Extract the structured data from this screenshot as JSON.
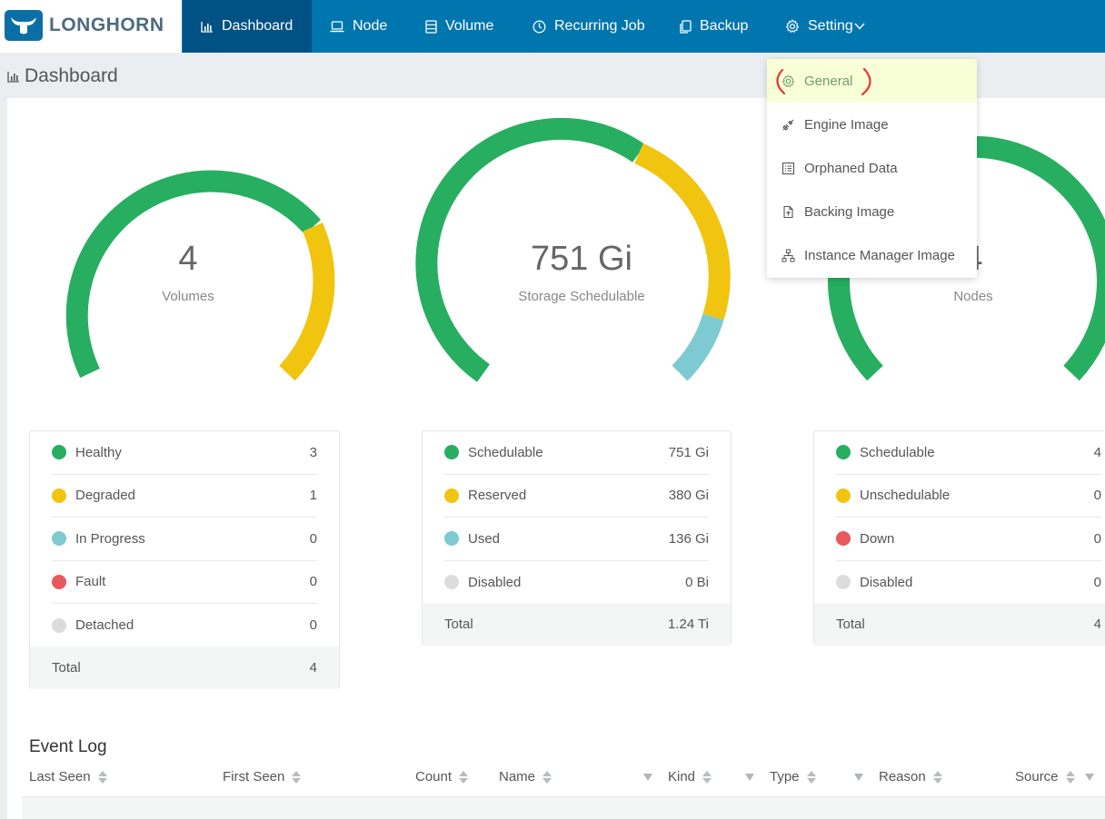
{
  "app": {
    "brand": "LONGHORN"
  },
  "nav": {
    "items": [
      {
        "label": "Dashboard",
        "icon": "bar-chart-icon"
      },
      {
        "label": "Node",
        "icon": "laptop-icon"
      },
      {
        "label": "Volume",
        "icon": "database-icon"
      },
      {
        "label": "Recurring Job",
        "icon": "clock-icon"
      },
      {
        "label": "Backup",
        "icon": "copy-icon"
      },
      {
        "label": "Setting",
        "icon": "gear-icon"
      }
    ]
  },
  "page": {
    "title": "Dashboard"
  },
  "gauges": [
    {
      "value": "4",
      "label": "Volumes"
    },
    {
      "value": "751 Gi",
      "label": "Storage Schedulable"
    },
    {
      "value": "4",
      "label": "Nodes"
    }
  ],
  "volume_stats": {
    "rows": [
      {
        "label": "Healthy",
        "value": "3"
      },
      {
        "label": "Degraded",
        "value": "1"
      },
      {
        "label": "In Progress",
        "value": "0"
      },
      {
        "label": "Fault",
        "value": "0"
      },
      {
        "label": "Detached",
        "value": "0"
      }
    ],
    "total_label": "Total",
    "total_value": "4"
  },
  "storage_stats": {
    "rows": [
      {
        "label": "Schedulable",
        "value": "751 Gi"
      },
      {
        "label": "Reserved",
        "value": "380 Gi"
      },
      {
        "label": "Used",
        "value": "136 Gi"
      },
      {
        "label": "Disabled",
        "value": "0 Bi"
      }
    ],
    "total_label": "Total",
    "total_value": "1.24 Ti"
  },
  "node_stats": {
    "rows": [
      {
        "label": "Schedulable",
        "value": "4"
      },
      {
        "label": "Unschedulable",
        "value": "0"
      },
      {
        "label": "Down",
        "value": "0"
      },
      {
        "label": "Disabled",
        "value": "0"
      }
    ],
    "total_label": "Total",
    "total_value": "4"
  },
  "colors": {
    "healthy": "#27ae60",
    "warning": "#f1c40f",
    "progress": "#7dcad3",
    "fault": "#e9585c",
    "disabled": "#dcdcdc",
    "nav_bg": "#0076ae",
    "nav_active": "#005184"
  },
  "event_log": {
    "title": "Event Log",
    "columns": [
      "Last Seen",
      "First Seen",
      "Count",
      "Name",
      "Kind",
      "Type",
      "Reason",
      "Source"
    ]
  },
  "setting_menu": {
    "items": [
      {
        "label": "General",
        "icon": "gear-icon"
      },
      {
        "label": "Engine Image",
        "icon": "link-icon"
      },
      {
        "label": "Orphaned Data",
        "icon": "list-icon"
      },
      {
        "label": "Backing Image",
        "icon": "file-icon"
      },
      {
        "label": "Instance Manager Image",
        "icon": "sitemap-icon"
      }
    ]
  }
}
